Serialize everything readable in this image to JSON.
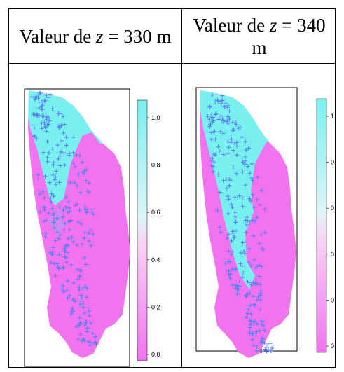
{
  "headers": [
    {
      "prefix": "Valeur de ",
      "var": "z",
      "suffix": " = 330 m"
    },
    {
      "prefix": "Valeur de ",
      "var": "z",
      "suffix": " = 340 m"
    }
  ],
  "legend": {
    "ticks": [
      "1.0",
      "0.8",
      "0.6",
      "0.4",
      "0.2",
      "0.0"
    ],
    "color_low": "#f272f0",
    "color_high": "#79f0f0"
  },
  "colors": {
    "region_low": "#f272f0",
    "region_high": "#79f0f0",
    "marker": "#5b7ff0"
  }
}
